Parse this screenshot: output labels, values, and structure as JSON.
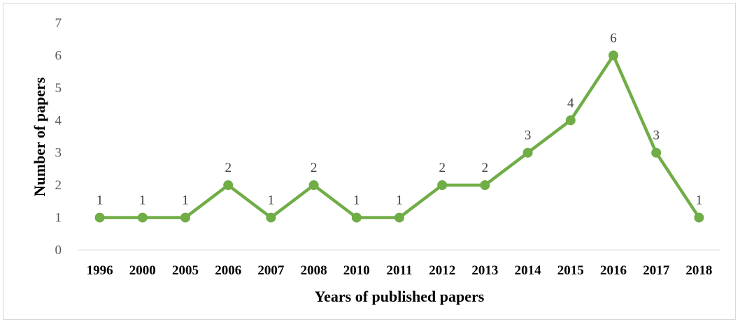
{
  "chart_data": {
    "type": "line",
    "x": [
      "1996",
      "2000",
      "2005",
      "2006",
      "2007",
      "2008",
      "2010",
      "2011",
      "2012",
      "2013",
      "2014",
      "2015",
      "2016",
      "2017",
      "2018"
    ],
    "series": [
      {
        "values": [
          1,
          1,
          1,
          2,
          1,
          2,
          1,
          1,
          2,
          2,
          3,
          4,
          6,
          3,
          1
        ],
        "color": "#70ad47"
      }
    ],
    "xlabel": "Years of published papers",
    "ylabel": "Number of papers",
    "ylim": [
      0,
      7
    ],
    "yticks": [
      "0",
      "1",
      "2",
      "3",
      "4",
      "5",
      "6",
      "7"
    ],
    "data_labels": [
      "1",
      "1",
      "1",
      "2",
      "1",
      "2",
      "1",
      "1",
      "2",
      "2",
      "3",
      "4",
      "6",
      "3",
      "1"
    ],
    "grid": false,
    "legend": "none",
    "marker": "circle"
  }
}
